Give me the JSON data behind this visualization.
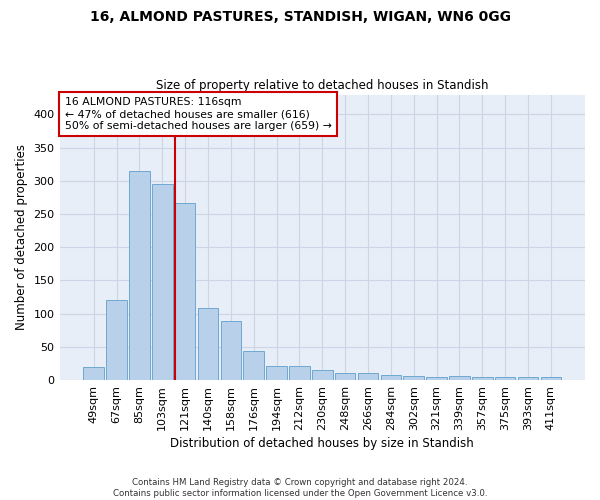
{
  "title1": "16, ALMOND PASTURES, STANDISH, WIGAN, WN6 0GG",
  "title2": "Size of property relative to detached houses in Standish",
  "xlabel": "Distribution of detached houses by size in Standish",
  "ylabel": "Number of detached properties",
  "categories": [
    "49sqm",
    "67sqm",
    "85sqm",
    "103sqm",
    "121sqm",
    "140sqm",
    "158sqm",
    "176sqm",
    "194sqm",
    "212sqm",
    "230sqm",
    "248sqm",
    "266sqm",
    "284sqm",
    "302sqm",
    "321sqm",
    "339sqm",
    "357sqm",
    "375sqm",
    "393sqm",
    "411sqm"
  ],
  "values": [
    20,
    120,
    315,
    295,
    267,
    109,
    89,
    44,
    21,
    21,
    15,
    10,
    10,
    7,
    6,
    5,
    6,
    5,
    4,
    4,
    4
  ],
  "bar_color": "#b8d0ea",
  "bar_edge_color": "#6fa8d0",
  "vline_color": "#cc0000",
  "annotation_text": "16 ALMOND PASTURES: 116sqm\n← 47% of detached houses are smaller (616)\n50% of semi-detached houses are larger (659) →",
  "annotation_box_color": "#ffffff",
  "annotation_box_edge": "#cc0000",
  "grid_color": "#ccd5e5",
  "background_color": "#e8eef8",
  "footer_text": "Contains HM Land Registry data © Crown copyright and database right 2024.\nContains public sector information licensed under the Open Government Licence v3.0.",
  "ylim": [
    0,
    430
  ]
}
